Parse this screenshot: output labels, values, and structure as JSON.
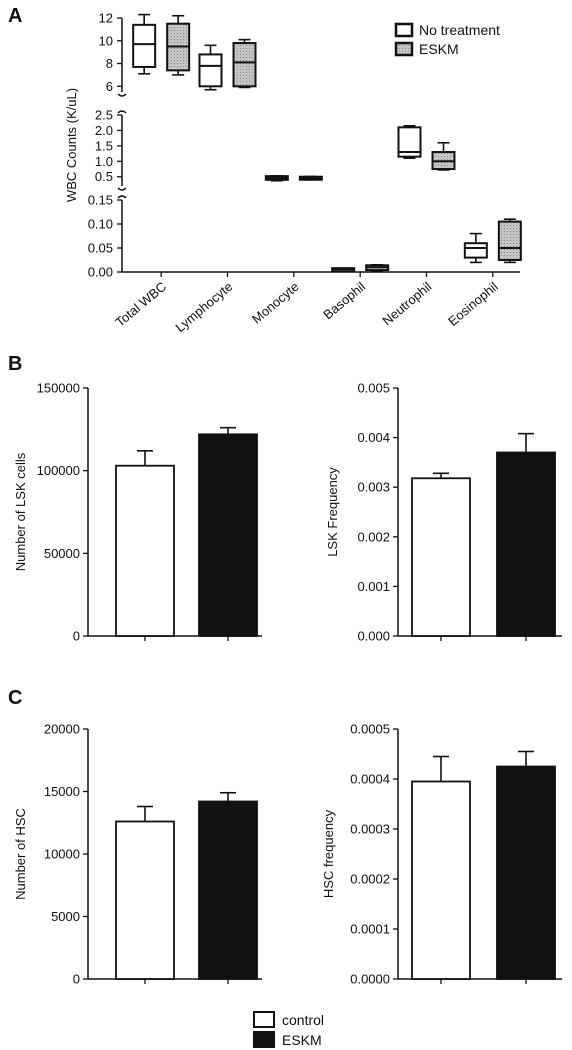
{
  "colors": {
    "no_treatment": "#ffffff",
    "eskm_box": "#c4c4c4",
    "control": "#ffffff",
    "eskm_bar": "#111111",
    "stroke": "#111111"
  },
  "panels": {
    "A": {
      "label": "A",
      "type": "box",
      "ylabel": "WBC Counts (K/uL)",
      "legend": [
        "No treatment",
        "ESKM"
      ],
      "categories": [
        "Total WBC",
        "Lymphocyte",
        "Monocyte",
        "Basophil",
        "Neutrophil",
        "Eosinophil"
      ],
      "segments": [
        {
          "range": [
            5.5,
            12
          ],
          "ticks": [
            "6",
            "8",
            "10",
            "12"
          ],
          "tick_values": [
            6,
            8,
            10,
            12
          ]
        },
        {
          "range": [
            0.2,
            2.5
          ],
          "ticks": [
            "0.5",
            "1.0",
            "1.5",
            "2.0",
            "2.5"
          ],
          "tick_values": [
            0.5,
            1.0,
            1.5,
            2.0,
            2.5
          ]
        },
        {
          "range": [
            0,
            0.15
          ],
          "ticks": [
            "0.00",
            "0.05",
            "0.10",
            "0.15"
          ],
          "tick_values": [
            0,
            0.05,
            0.1,
            0.15
          ]
        }
      ],
      "series": [
        {
          "name": "No treatment",
          "boxes": [
            {
              "min": 7.1,
              "q1": 7.7,
              "median": 9.7,
              "q3": 11.4,
              "max": 12.3
            },
            {
              "min": 5.7,
              "q1": 6.0,
              "median": 7.8,
              "q3": 8.8,
              "max": 9.6
            },
            {
              "min": 0.37,
              "q1": 0.4,
              "median": 0.46,
              "q3": 0.52,
              "max": 0.53
            },
            {
              "min": 0.002,
              "q1": 0.002,
              "median": 0.006,
              "q3": 0.008,
              "max": 0.008
            },
            {
              "min": 1.1,
              "q1": 1.15,
              "median": 1.3,
              "q3": 2.1,
              "max": 2.15
            },
            {
              "min": 0.02,
              "q1": 0.03,
              "median": 0.05,
              "q3": 0.06,
              "max": 0.08
            }
          ]
        },
        {
          "name": "ESKM",
          "boxes": [
            {
              "min": 7.0,
              "q1": 7.4,
              "median": 9.5,
              "q3": 11.5,
              "max": 12.2
            },
            {
              "min": 5.9,
              "q1": 6.0,
              "median": 8.1,
              "q3": 9.8,
              "max": 10.1
            },
            {
              "min": 0.4,
              "q1": 0.42,
              "median": 0.46,
              "q3": 0.5,
              "max": 0.51
            },
            {
              "min": 0.002,
              "q1": 0.004,
              "median": 0.01,
              "q3": 0.014,
              "max": 0.015
            },
            {
              "min": 0.72,
              "q1": 0.75,
              "median": 1.0,
              "q3": 1.3,
              "max": 1.6
            },
            {
              "min": 0.02,
              "q1": 0.025,
              "median": 0.05,
              "q3": 0.105,
              "max": 0.11
            }
          ]
        }
      ]
    },
    "B": {
      "label": "B",
      "charts": [
        {
          "type": "bar",
          "ylabel": "Number of LSK cells",
          "ylim": [
            0,
            150000
          ],
          "ticks": [
            "0",
            "50000",
            "100000",
            "150000"
          ],
          "tick_values": [
            0,
            50000,
            100000,
            150000
          ],
          "categories": [
            "control",
            "ESKM"
          ],
          "values": [
            103000,
            122000
          ],
          "errors": [
            9000,
            4000
          ]
        },
        {
          "type": "bar",
          "ylabel": "LSK Frequency",
          "ylim": [
            0,
            0.005
          ],
          "ticks": [
            "0.000",
            "0.001",
            "0.002",
            "0.003",
            "0.004",
            "0.005"
          ],
          "tick_values": [
            0,
            0.001,
            0.002,
            0.003,
            0.004,
            0.005
          ],
          "categories": [
            "control",
            "ESKM"
          ],
          "values": [
            0.00318,
            0.0037
          ],
          "errors": [
            0.0001,
            0.00038
          ]
        }
      ]
    },
    "C": {
      "label": "C",
      "charts": [
        {
          "type": "bar",
          "ylabel": "Number of HSC",
          "ylim": [
            0,
            20000
          ],
          "ticks": [
            "0",
            "5000",
            "10000",
            "15000",
            "20000"
          ],
          "tick_values": [
            0,
            5000,
            10000,
            15000,
            20000
          ],
          "categories": [
            "control",
            "ESKM"
          ],
          "values": [
            12600,
            14200
          ],
          "errors": [
            1200,
            700
          ]
        },
        {
          "type": "bar",
          "ylabel": "HSC frequency",
          "ylim": [
            0,
            0.0005
          ],
          "ticks": [
            "0.0000",
            "0.0001",
            "0.0002",
            "0.0003",
            "0.0004",
            "0.0005"
          ],
          "tick_values": [
            0,
            0.0001,
            0.0002,
            0.0003,
            0.0004,
            0.0005
          ],
          "categories": [
            "control",
            "ESKM"
          ],
          "values": [
            0.000395,
            0.000425
          ],
          "errors": [
            5e-05,
            3e-05
          ]
        }
      ]
    }
  },
  "legend": {
    "items": [
      {
        "label": "control",
        "color": "#ffffff"
      },
      {
        "label": "ESKM",
        "color": "#111111"
      }
    ]
  },
  "chart_data": [
    {
      "type": "box",
      "ylabel": "WBC Counts (K/uL)",
      "categories": [
        "Total WBC",
        "Lymphocyte",
        "Monocyte",
        "Basophil",
        "Neutrophil",
        "Eosinophil"
      ],
      "series": [
        {
          "name": "No treatment",
          "median": [
            9.7,
            7.8,
            0.46,
            0.006,
            1.3,
            0.05
          ]
        },
        {
          "name": "ESKM",
          "median": [
            9.5,
            8.1,
            0.46,
            0.01,
            1.0,
            0.05
          ]
        }
      ]
    },
    {
      "type": "bar",
      "ylabel": "Number of LSK cells",
      "categories": [
        "control",
        "ESKM"
      ],
      "values": [
        103000,
        122000
      ],
      "ylim": [
        0,
        150000
      ]
    },
    {
      "type": "bar",
      "ylabel": "LSK Frequency",
      "categories": [
        "control",
        "ESKM"
      ],
      "values": [
        0.00318,
        0.0037
      ],
      "ylim": [
        0,
        0.005
      ]
    },
    {
      "type": "bar",
      "ylabel": "Number of HSC",
      "categories": [
        "control",
        "ESKM"
      ],
      "values": [
        12600,
        14200
      ],
      "ylim": [
        0,
        20000
      ]
    },
    {
      "type": "bar",
      "ylabel": "HSC frequency",
      "categories": [
        "control",
        "ESKM"
      ],
      "values": [
        0.000395,
        0.000425
      ],
      "ylim": [
        0,
        0.0005
      ]
    }
  ]
}
